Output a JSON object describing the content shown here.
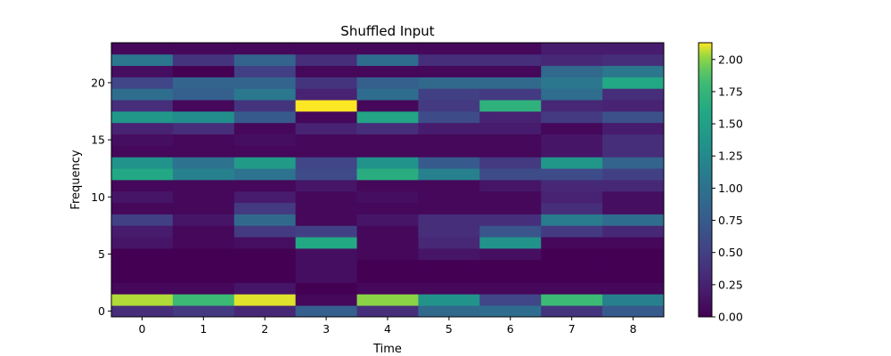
{
  "chart_data": {
    "type": "heatmap",
    "title": "Shuffled Input",
    "xlabel": "Time",
    "ylabel": "Frequency",
    "x_ticks": [
      "0",
      "1",
      "2",
      "3",
      "4",
      "5",
      "6",
      "7",
      "8"
    ],
    "y_ticks": [
      "0",
      "5",
      "10",
      "15",
      "20"
    ],
    "colorbar_ticks": [
      "0.00",
      "0.25",
      "0.50",
      "0.75",
      "1.00",
      "1.25",
      "1.50",
      "1.75",
      "2.00"
    ],
    "colorbar_values": [
      0,
      0.25,
      0.5,
      0.75,
      1.0,
      1.25,
      1.5,
      1.75,
      2.0
    ],
    "colormap": "viridis",
    "vmin": 0,
    "vmax": 2.13,
    "xlim": [
      -0.5,
      8.5
    ],
    "ylim": [
      -0.5,
      23.5
    ],
    "rows": [
      [
        0.35,
        0.45,
        0.3,
        0.8,
        0.35,
        0.9,
        0.95,
        0.4,
        0.75
      ],
      [
        2.05,
        1.8,
        2.1,
        0.05,
        2.0,
        1.35,
        0.55,
        1.8,
        1.15
      ],
      [
        0.05,
        0.05,
        0.15,
        0.0,
        0.05,
        0.05,
        0.05,
        0.05,
        0.05
      ],
      [
        0.0,
        0.0,
        0.0,
        0.1,
        0.0,
        0.0,
        0.0,
        0.0,
        0.0
      ],
      [
        0.0,
        0.0,
        0.0,
        0.1,
        0.0,
        0.0,
        0.0,
        0.0,
        0.0
      ],
      [
        0.0,
        0.0,
        0.0,
        0.1,
        0.05,
        0.15,
        0.1,
        0.0,
        0.0
      ],
      [
        0.15,
        0.05,
        0.1,
        1.6,
        0.05,
        0.3,
        1.35,
        0.05,
        0.05
      ],
      [
        0.2,
        0.05,
        0.45,
        0.5,
        0.05,
        0.35,
        0.7,
        0.45,
        0.3
      ],
      [
        0.5,
        0.15,
        0.9,
        0.05,
        0.15,
        0.35,
        0.35,
        1.1,
        0.95
      ],
      [
        0.05,
        0.05,
        0.45,
        0.05,
        0.05,
        0.05,
        0.05,
        0.35,
        0.1
      ],
      [
        0.15,
        0.05,
        0.2,
        0.05,
        0.1,
        0.05,
        0.05,
        0.25,
        0.1
      ],
      [
        0.05,
        0.05,
        0.05,
        0.15,
        0.05,
        0.05,
        0.15,
        0.3,
        0.3
      ],
      [
        1.6,
        1.15,
        1.0,
        0.6,
        1.65,
        1.15,
        0.6,
        0.6,
        0.5
      ],
      [
        1.35,
        1.0,
        1.45,
        0.55,
        1.35,
        0.75,
        0.45,
        1.4,
        0.85
      ],
      [
        0.05,
        0.05,
        0.05,
        0.05,
        0.05,
        0.05,
        0.05,
        0.15,
        0.35
      ],
      [
        0.1,
        0.05,
        0.1,
        0.05,
        0.05,
        0.05,
        0.05,
        0.15,
        0.35
      ],
      [
        0.25,
        0.35,
        0.05,
        0.25,
        0.35,
        0.2,
        0.2,
        0.05,
        0.2
      ],
      [
        1.4,
        1.3,
        0.75,
        0.05,
        1.55,
        0.6,
        0.25,
        0.45,
        0.65
      ],
      [
        0.35,
        0.05,
        0.4,
        2.15,
        0.05,
        0.45,
        1.7,
        0.3,
        0.25
      ],
      [
        0.95,
        0.8,
        1.05,
        0.25,
        0.95,
        0.5,
        0.45,
        0.95,
        0.35
      ],
      [
        0.55,
        0.85,
        0.85,
        0.4,
        0.8,
        0.9,
        0.9,
        1.05,
        1.6
      ],
      [
        0.1,
        0.0,
        0.5,
        0.05,
        0.05,
        0.05,
        0.05,
        0.9,
        1.05
      ],
      [
        1.05,
        0.4,
        0.85,
        0.35,
        0.95,
        0.35,
        0.35,
        0.3,
        0.35
      ],
      [
        0.05,
        0.05,
        0.05,
        0.05,
        0.05,
        0.05,
        0.05,
        0.2,
        0.2
      ]
    ]
  }
}
